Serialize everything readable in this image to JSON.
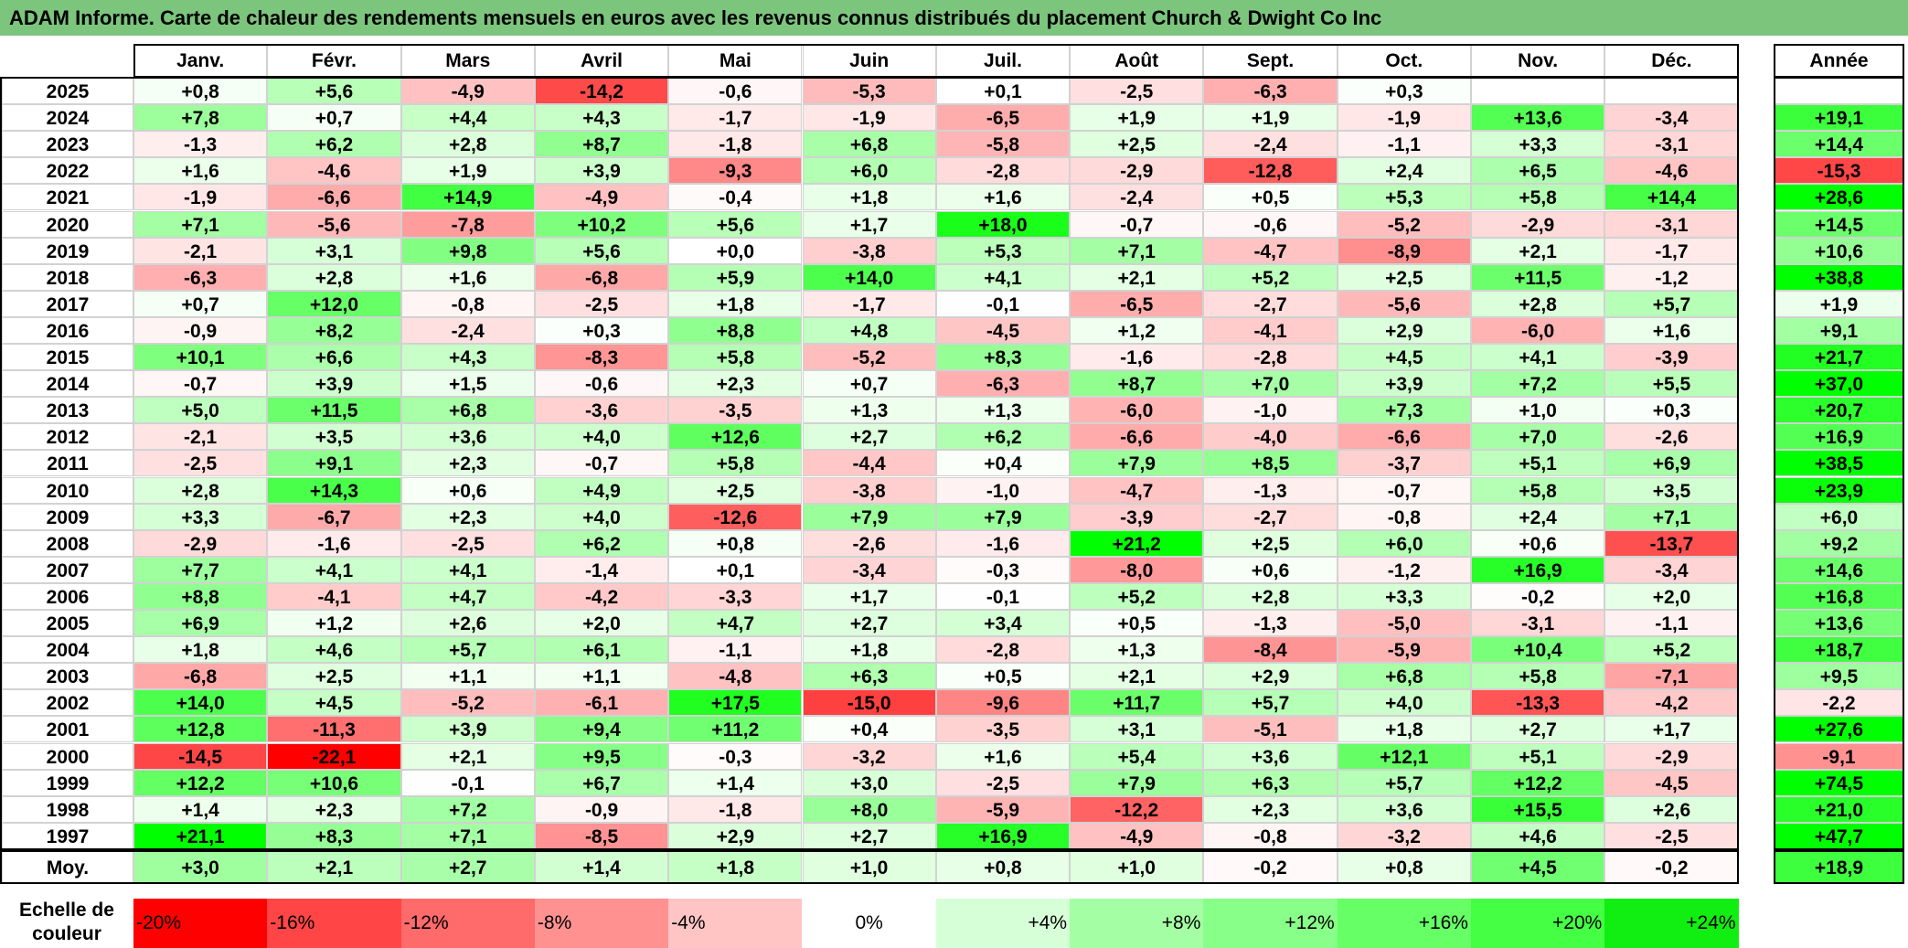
{
  "title": "ADAM Informe. Carte de chaleur des rendements mensuels en euros avec les revenus connus distribués du placement Church & Dwight Co Inc",
  "chart_data": {
    "type": "heatmap",
    "title": "ADAM Informe. Carte de chaleur des rendements mensuels en euros avec les revenus connus distribués du placement Church & Dwight Co Inc",
    "months": [
      "Janv.",
      "Févr.",
      "Mars",
      "Avril",
      "Mai",
      "Juin",
      "Juil.",
      "Août",
      "Sept.",
      "Oct.",
      "Nov.",
      "Déc."
    ],
    "year_header": "Année",
    "rows": [
      {
        "year": "2025",
        "values": [
          "+0,8",
          "+5,6",
          "-4,9",
          "-14,2",
          "-0,6",
          "-5,3",
          "+0,1",
          "-2,5",
          "-6,3",
          "+0,3",
          "",
          ""
        ],
        "annual": ""
      },
      {
        "year": "2024",
        "values": [
          "+7,8",
          "+0,7",
          "+4,4",
          "+4,3",
          "-1,7",
          "-1,9",
          "-6,5",
          "+1,9",
          "+1,9",
          "-1,9",
          "+13,6",
          "-3,4"
        ],
        "annual": "+19,1"
      },
      {
        "year": "2023",
        "values": [
          "-1,3",
          "+6,2",
          "+2,8",
          "+8,7",
          "-1,8",
          "+6,8",
          "-5,8",
          "+2,5",
          "-2,4",
          "-1,1",
          "+3,3",
          "-3,1"
        ],
        "annual": "+14,4"
      },
      {
        "year": "2022",
        "values": [
          "+1,6",
          "-4,6",
          "+1,9",
          "+3,9",
          "-9,3",
          "+6,0",
          "-2,8",
          "-2,9",
          "-12,8",
          "+2,4",
          "+6,5",
          "-4,6"
        ],
        "annual": "-15,3"
      },
      {
        "year": "2021",
        "values": [
          "-1,9",
          "-6,6",
          "+14,9",
          "-4,9",
          "-0,4",
          "+1,8",
          "+1,6",
          "-2,4",
          "+0,5",
          "+5,3",
          "+5,8",
          "+14,4"
        ],
        "annual": "+28,6"
      },
      {
        "year": "2020",
        "values": [
          "+7,1",
          "-5,6",
          "-7,8",
          "+10,2",
          "+5,6",
          "+1,7",
          "+18,0",
          "-0,7",
          "-0,6",
          "-5,2",
          "-2,9",
          "-3,1"
        ],
        "annual": "+14,5"
      },
      {
        "year": "2019",
        "values": [
          "-2,1",
          "+3,1",
          "+9,8",
          "+5,6",
          "+0,0",
          "-3,8",
          "+5,3",
          "+7,1",
          "-4,7",
          "-8,9",
          "+2,1",
          "-1,7"
        ],
        "annual": "+10,6"
      },
      {
        "year": "2018",
        "values": [
          "-6,3",
          "+2,8",
          "+1,6",
          "-6,8",
          "+5,9",
          "+14,0",
          "+4,1",
          "+2,1",
          "+5,2",
          "+2,5",
          "+11,5",
          "-1,2"
        ],
        "annual": "+38,8"
      },
      {
        "year": "2017",
        "values": [
          "+0,7",
          "+12,0",
          "-0,8",
          "-2,5",
          "+1,8",
          "-1,7",
          "-0,1",
          "-6,5",
          "-2,7",
          "-5,6",
          "+2,8",
          "+5,7"
        ],
        "annual": "+1,9"
      },
      {
        "year": "2016",
        "values": [
          "-0,9",
          "+8,2",
          "-2,4",
          "+0,3",
          "+8,8",
          "+4,8",
          "-4,5",
          "+1,2",
          "-4,1",
          "+2,9",
          "-6,0",
          "+1,6"
        ],
        "annual": "+9,1"
      },
      {
        "year": "2015",
        "values": [
          "+10,1",
          "+6,6",
          "+4,3",
          "-8,3",
          "+5,8",
          "-5,2",
          "+8,3",
          "-1,6",
          "-2,8",
          "+4,5",
          "+4,1",
          "-3,9"
        ],
        "annual": "+21,7"
      },
      {
        "year": "2014",
        "values": [
          "-0,7",
          "+3,9",
          "+1,5",
          "-0,6",
          "+2,3",
          "+0,7",
          "-6,3",
          "+8,7",
          "+7,0",
          "+3,9",
          "+7,2",
          "+5,5"
        ],
        "annual": "+37,0"
      },
      {
        "year": "2013",
        "values": [
          "+5,0",
          "+11,5",
          "+6,8",
          "-3,6",
          "-3,5",
          "+1,3",
          "+1,3",
          "-6,0",
          "-1,0",
          "+7,3",
          "+1,0",
          "+0,3"
        ],
        "annual": "+20,7"
      },
      {
        "year": "2012",
        "values": [
          "-2,1",
          "+3,5",
          "+3,6",
          "+4,0",
          "+12,6",
          "+2,7",
          "+6,2",
          "-6,6",
          "-4,0",
          "-6,6",
          "+7,0",
          "-2,6"
        ],
        "annual": "+16,9"
      },
      {
        "year": "2011",
        "values": [
          "-2,5",
          "+9,1",
          "+2,3",
          "-0,7",
          "+5,8",
          "-4,4",
          "+0,4",
          "+7,9",
          "+8,5",
          "-3,7",
          "+5,1",
          "+6,9"
        ],
        "annual": "+38,5"
      },
      {
        "year": "2010",
        "values": [
          "+2,8",
          "+14,3",
          "+0,6",
          "+4,9",
          "+2,5",
          "-3,8",
          "-1,0",
          "-4,7",
          "-1,3",
          "-0,7",
          "+5,8",
          "+3,5"
        ],
        "annual": "+23,9"
      },
      {
        "year": "2009",
        "values": [
          "+3,3",
          "-6,7",
          "+2,3",
          "+4,0",
          "-12,6",
          "+7,9",
          "+7,9",
          "-3,9",
          "-2,7",
          "-0,8",
          "+2,4",
          "+7,1"
        ],
        "annual": "+6,0"
      },
      {
        "year": "2008",
        "values": [
          "-2,9",
          "-1,6",
          "-2,5",
          "+6,2",
          "+0,8",
          "-2,6",
          "-1,6",
          "+21,2",
          "+2,5",
          "+6,0",
          "+0,6",
          "-13,7"
        ],
        "annual": "+9,2"
      },
      {
        "year": "2007",
        "values": [
          "+7,7",
          "+4,1",
          "+4,1",
          "-1,4",
          "+0,1",
          "-3,4",
          "-0,3",
          "-8,0",
          "+0,6",
          "-1,2",
          "+16,9",
          "-3,4"
        ],
        "annual": "+14,6"
      },
      {
        "year": "2006",
        "values": [
          "+8,8",
          "-4,1",
          "+4,7",
          "-4,2",
          "-3,3",
          "+1,7",
          "-0,1",
          "+5,2",
          "+2,8",
          "+3,3",
          "-0,2",
          "+2,0"
        ],
        "annual": "+16,8"
      },
      {
        "year": "2005",
        "values": [
          "+6,9",
          "+1,2",
          "+2,6",
          "+2,0",
          "+4,7",
          "+2,7",
          "+3,4",
          "+0,5",
          "-1,3",
          "-5,0",
          "-3,1",
          "-1,1"
        ],
        "annual": "+13,6"
      },
      {
        "year": "2004",
        "values": [
          "+1,8",
          "+4,6",
          "+5,7",
          "+6,1",
          "-1,1",
          "+1,8",
          "-2,8",
          "+1,3",
          "-8,4",
          "-5,9",
          "+10,4",
          "+5,2"
        ],
        "annual": "+18,7"
      },
      {
        "year": "2003",
        "values": [
          "-6,8",
          "+2,5",
          "+1,1",
          "+1,1",
          "-4,8",
          "+6,3",
          "+0,5",
          "+2,1",
          "+2,9",
          "+6,8",
          "+5,8",
          "-7,1"
        ],
        "annual": "+9,5"
      },
      {
        "year": "2002",
        "values": [
          "+14,0",
          "+4,5",
          "-5,2",
          "-6,1",
          "+17,5",
          "-15,0",
          "-9,6",
          "+11,7",
          "+5,7",
          "+4,0",
          "-13,3",
          "-4,2"
        ],
        "annual": "-2,2"
      },
      {
        "year": "2001",
        "values": [
          "+12,8",
          "-11,3",
          "+3,9",
          "+9,4",
          "+11,2",
          "+0,4",
          "-3,5",
          "+3,1",
          "-5,1",
          "+1,8",
          "+2,7",
          "+1,7"
        ],
        "annual": "+27,6"
      },
      {
        "year": "2000",
        "values": [
          "-14,5",
          "-22,1",
          "+2,1",
          "+9,5",
          "-0,3",
          "-3,2",
          "+1,6",
          "+5,4",
          "+3,6",
          "+12,1",
          "+5,1",
          "-2,9"
        ],
        "annual": "-9,1"
      },
      {
        "year": "1999",
        "values": [
          "+12,2",
          "+10,6",
          "-0,1",
          "+6,7",
          "+1,4",
          "+3,0",
          "-2,5",
          "+7,9",
          "+6,3",
          "+5,7",
          "+12,2",
          "-4,5"
        ],
        "annual": "+74,5"
      },
      {
        "year": "1998",
        "values": [
          "+1,4",
          "+2,3",
          "+7,2",
          "-0,9",
          "-1,8",
          "+8,0",
          "-5,9",
          "-12,2",
          "+2,3",
          "+3,6",
          "+15,5",
          "+2,6"
        ],
        "annual": "+21,0"
      },
      {
        "year": "1997",
        "values": [
          "+21,1",
          "+8,3",
          "+7,1",
          "-8,5",
          "+2,9",
          "+2,7",
          "+16,9",
          "-4,9",
          "-0,8",
          "-3,2",
          "+4,6",
          "-2,5"
        ],
        "annual": "+47,7"
      }
    ],
    "average": {
      "label": "Moy.",
      "values": [
        "+3,0",
        "+2,1",
        "+2,7",
        "+1,4",
        "+1,8",
        "+1,0",
        "+0,8",
        "+1,0",
        "-0,2",
        "+0,8",
        "+4,5",
        "-0,2"
      ],
      "annual": "+18,9"
    },
    "legend": {
      "label": "Echelle de couleur",
      "items": [
        "-20%",
        "-16%",
        "-12%",
        "-8%",
        "-4%",
        "0%",
        "+4%",
        "+8%",
        "+12%",
        "+16%",
        "+20%",
        "+24%"
      ],
      "colors": [
        "#ff0000",
        "#ff4545",
        "#ff6a6a",
        "#ff9191",
        "#ffc5c5",
        "#ffffff",
        "#d7ffd7",
        "#a4ffa4",
        "#88ff88",
        "#66ff66",
        "#44ff44",
        "#11ee11"
      ]
    },
    "colors": {
      "negative_extreme": "#ff0000",
      "neutral": "#ffffff",
      "positive_extreme": "#00ff00",
      "title_bar": "#7cc57d"
    }
  }
}
